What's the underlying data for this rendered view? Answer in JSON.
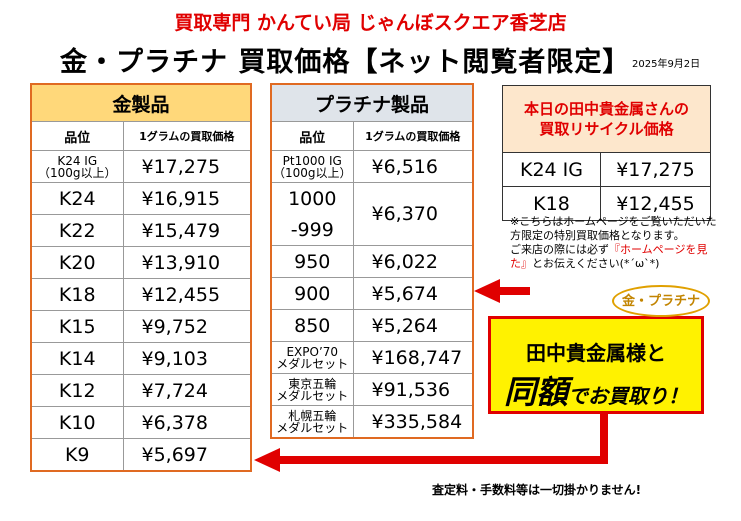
{
  "header": {
    "store_name": "買取専門 かんてい局 じゃんぼスクエア香芝店",
    "title": "金・プラチナ 買取価格【ネット閲覧者限定】",
    "date": "2025年9月2日"
  },
  "gold": {
    "title": "金製品",
    "col_grade": "品位",
    "col_price": "1グラムの買取価格",
    "rows": [
      {
        "grade": "K24 IG",
        "sub": "（100g以上）",
        "price": "¥17,275"
      },
      {
        "grade": "K24",
        "price": "¥16,915"
      },
      {
        "grade": "K22",
        "price": "¥15,479"
      },
      {
        "grade": "K20",
        "price": "¥13,910"
      },
      {
        "grade": "K18",
        "price": "¥12,455"
      },
      {
        "grade": "K15",
        "price": "¥9,752"
      },
      {
        "grade": "K14",
        "price": "¥9,103"
      },
      {
        "grade": "K12",
        "price": "¥7,724"
      },
      {
        "grade": "K10",
        "price": "¥6,378"
      },
      {
        "grade": "K9",
        "price": "¥5,697"
      }
    ]
  },
  "platinum": {
    "title": "プラチナ製品",
    "col_grade": "品位",
    "col_price": "1グラムの買取価格",
    "rows": [
      {
        "grade": "Pt1000 IG",
        "sub": "（100g以上）",
        "price": "¥6,516"
      },
      {
        "grade": "1000",
        "grade2": "-999",
        "price": "¥6,370"
      },
      {
        "grade": "950",
        "price": "¥6,022"
      },
      {
        "grade": "900",
        "price": "¥5,674"
      },
      {
        "grade": "850",
        "price": "¥5,264"
      },
      {
        "grade": "EXPO’70",
        "sub": "メダルセット",
        "price": "¥168,747"
      },
      {
        "grade": "東京五輪",
        "sub": "メダルセット",
        "price": "¥91,536"
      },
      {
        "grade": "札幌五輪",
        "sub": "メダルセット",
        "price": "¥335,584"
      }
    ]
  },
  "tanaka": {
    "title_line1": "本日の田中貴金属さんの",
    "title_line2": "買取リサイクル価格",
    "rows": [
      {
        "grade": "K24 IG",
        "price": "¥17,275"
      },
      {
        "grade": "K18",
        "price": "¥12,455"
      }
    ]
  },
  "note": {
    "line1": "※こちらはホームページをご覧いただいた方限定の特別買取価格となります。",
    "line2_pre": "ご来店の際には必ず",
    "line2_red": "『ホームページを見た』",
    "line2_post": "とお伝えください(*´ω`*)"
  },
  "callout": {
    "bubble": "金・プラチナ",
    "line1": "田中貴金属様と",
    "big": "同額",
    "rest": "でお買取り！"
  },
  "footer": "査定料・手数料等は一切掛かりません!",
  "colors": {
    "red": "#e00000",
    "orange_border": "#e06a22",
    "gold_header": "#ffd87a",
    "plat_header": "#dfe4ea",
    "callout_bg": "#fff200",
    "tanaka_header": "#fde7cc"
  }
}
